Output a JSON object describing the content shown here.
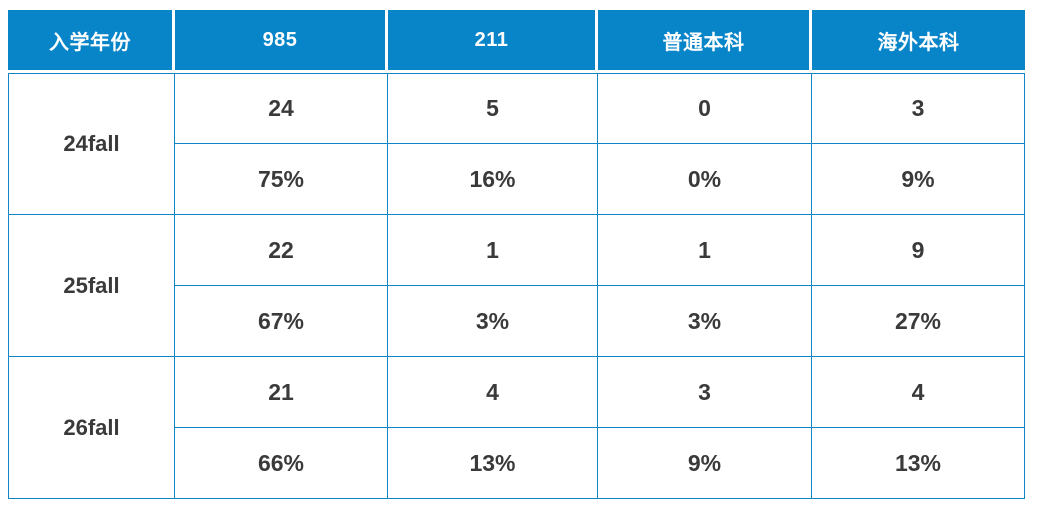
{
  "chart_data": {
    "type": "table",
    "columns": [
      "入学年份",
      "985",
      "211",
      "普通本科",
      "海外本科"
    ],
    "rows": [
      {
        "year": "24fall",
        "counts": [
          "24",
          "5",
          "0",
          "3"
        ],
        "percents": [
          "75%",
          "16%",
          "0%",
          "9%"
        ]
      },
      {
        "year": "25fall",
        "counts": [
          "22",
          "1",
          "1",
          "9"
        ],
        "percents": [
          "67%",
          "3%",
          "3%",
          "27%"
        ]
      },
      {
        "year": "26fall",
        "counts": [
          "21",
          "4",
          "3",
          "4"
        ],
        "percents": [
          "66%",
          "13%",
          "9%",
          "13%"
        ]
      }
    ]
  },
  "colors": {
    "header_bg": "#0884C9",
    "border": "#0E85C7",
    "header_text": "#FFFFFF",
    "text": "#3A3A3A",
    "page_bg": "#FFFFFF"
  }
}
